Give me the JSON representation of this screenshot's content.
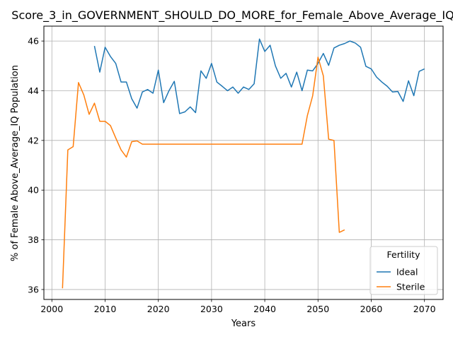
{
  "chart_data": {
    "type": "line",
    "title": "Score_3_in_GOVERNMENT_SHOULD_DO_MORE_for_Female_Above_Average_IQ",
    "xlabel": "Years",
    "ylabel": "% of Female Above_Average_IQ Population",
    "xlim": [
      1998.5,
      2073.5
    ],
    "ylim": [
      35.6,
      46.6
    ],
    "x_ticks": [
      2000,
      2010,
      2020,
      2030,
      2040,
      2050,
      2060,
      2070
    ],
    "y_ticks": [
      36,
      38,
      40,
      42,
      44,
      46
    ],
    "grid": true,
    "legend": {
      "title": "Fertility",
      "placement": "lower right"
    },
    "series": [
      {
        "name": "Ideal",
        "color": "#1f77b4",
        "x": [
          2008,
          2009,
          2010,
          2011,
          2012,
          2013,
          2014,
          2015,
          2016,
          2017,
          2018,
          2019,
          2020,
          2021,
          2022,
          2023,
          2024,
          2025,
          2026,
          2027,
          2028,
          2029,
          2030,
          2031,
          2032,
          2033,
          2034,
          2035,
          2036,
          2037,
          2038,
          2039,
          2040,
          2041,
          2042,
          2043,
          2044,
          2045,
          2046,
          2047,
          2048,
          2049,
          2050,
          2051,
          2052,
          2053,
          2054,
          2055,
          2056,
          2057,
          2058,
          2059,
          2060,
          2061,
          2062,
          2063,
          2064,
          2065,
          2066,
          2067,
          2068,
          2069,
          2070
        ],
        "y": [
          45.8,
          44.75,
          45.75,
          45.38,
          45.1,
          44.35,
          44.35,
          43.68,
          43.3,
          43.95,
          44.05,
          43.9,
          44.83,
          43.52,
          44.0,
          44.38,
          43.08,
          43.15,
          43.35,
          43.12,
          44.8,
          44.5,
          45.1,
          44.35,
          44.18,
          44.0,
          44.15,
          43.9,
          44.15,
          44.05,
          44.28,
          46.08,
          45.58,
          45.83,
          45.0,
          44.5,
          44.7,
          44.15,
          44.75,
          44.0,
          44.83,
          44.8,
          45.1,
          45.5,
          45.02,
          45.72,
          45.83,
          45.9,
          46.0,
          45.92,
          45.75,
          44.98,
          44.88,
          44.55,
          44.35,
          44.18,
          43.95,
          43.97,
          43.57,
          44.4,
          43.8,
          44.78,
          44.88
        ]
      },
      {
        "name": "Sterile",
        "color": "#ff7f0e",
        "x": [
          2002,
          2003,
          2004,
          2005,
          2006,
          2007,
          2008,
          2009,
          2010,
          2011,
          2012,
          2013,
          2014,
          2015,
          2016,
          2017,
          2018,
          2019,
          2020,
          2021,
          2022,
          2023,
          2024,
          2025,
          2026,
          2027,
          2028,
          2029,
          2030,
          2031,
          2032,
          2033,
          2034,
          2035,
          2036,
          2037,
          2038,
          2039,
          2040,
          2041,
          2042,
          2043,
          2044,
          2045,
          2046,
          2047,
          2048,
          2049,
          2050,
          2051,
          2052,
          2053,
          2054,
          2055
        ],
        "y": [
          36.05,
          41.62,
          41.75,
          44.33,
          43.83,
          43.05,
          43.5,
          42.77,
          42.77,
          42.6,
          42.1,
          41.62,
          41.33,
          41.95,
          41.98,
          41.85,
          41.85,
          41.85,
          41.85,
          41.85,
          41.85,
          41.85,
          41.85,
          41.85,
          41.85,
          41.85,
          41.85,
          41.85,
          41.85,
          41.85,
          41.85,
          41.85,
          41.85,
          41.85,
          41.85,
          41.85,
          41.85,
          41.85,
          41.85,
          41.85,
          41.85,
          41.85,
          41.85,
          41.85,
          41.85,
          41.85,
          43.0,
          43.8,
          45.35,
          44.6,
          42.05,
          42.0,
          38.3,
          38.4
        ]
      }
    ]
  }
}
